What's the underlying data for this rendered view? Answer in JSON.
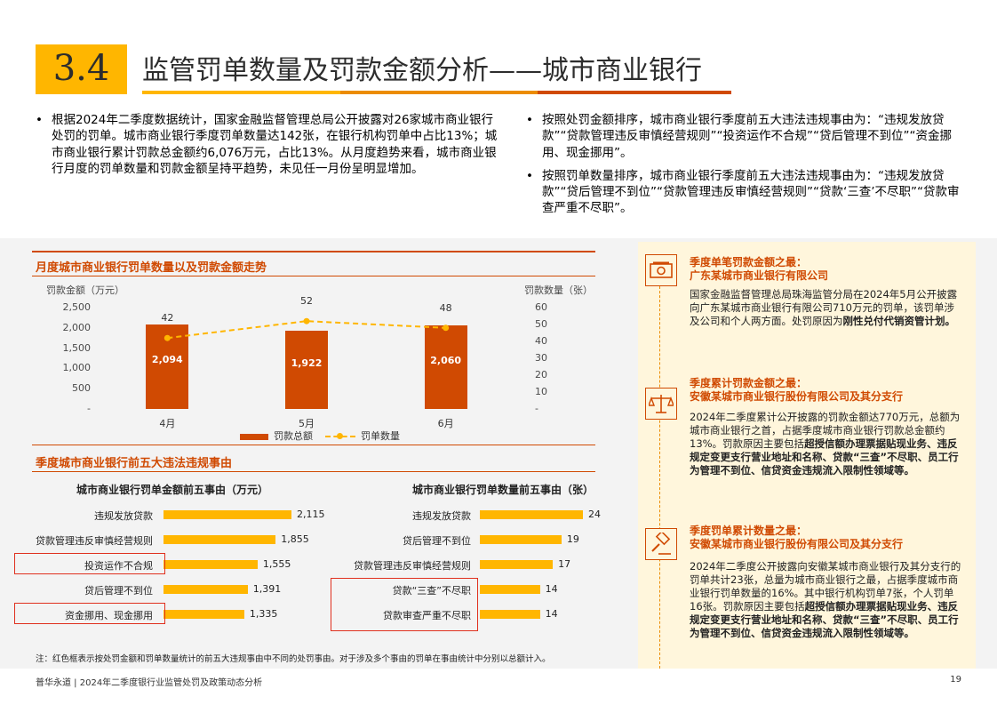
{
  "header": {
    "section_number": "3.4",
    "title": "监管罚单数量及罚款金额分析——城市商业银行"
  },
  "bullets_left": [
    "根据2024年二季度数据统计，国家金融监督管理总局公开披露对26家城市商业银行处罚的罚单。城市商业银行季度罚单数量达142张，在银行机构罚单中占比13%；城市商业银行累计罚款总金额约6,076万元，占比13%。从月度趋势来看，城市商业银行月度的罚单数量和罚款金额呈持平趋势，未见任一月份呈明显增加。"
  ],
  "bullets_right": [
    "按照处罚金额排序，城市商业银行季度前五大违法违规事由为：“违规发放贷款”“贷款管理违反审慎经营规则”“投资运作不合规”“贷后管理不到位”“资金挪用、现金挪用”。",
    "按照罚单数量排序，城市商业银行季度前五大违法违规事由为：“违规发放贷款”“贷后管理不到位”“贷款管理违反审慎经营规则”“贷款‘三查’不尽职”“贷款审查严重不尽职”。"
  ],
  "chart_data": [
    {
      "type": "bar",
      "title": "月度城市商业银行罚单数量以及罚款金额走势",
      "categories": [
        "4月",
        "5月",
        "6月"
      ],
      "series": [
        {
          "name": "罚款总额",
          "type": "bar",
          "axis": "left",
          "values": [
            2094,
            1922,
            2060
          ],
          "labels": [
            "2,094",
            "1,922",
            "2,060"
          ],
          "color": "#D04A02"
        },
        {
          "name": "罚单数量",
          "type": "line",
          "axis": "right",
          "values": [
            42,
            52,
            48
          ],
          "labels": [
            "42",
            "52",
            "48"
          ],
          "color": "#FFB600"
        }
      ],
      "ylabel": "罚款金额（万元）",
      "y2label": "罚款数量（张）",
      "ylim": [
        0,
        2500
      ],
      "y2lim": [
        0,
        60
      ],
      "yticks": [
        "2,500",
        "2,000",
        "1,500",
        "1,000",
        "500",
        "-"
      ],
      "y2ticks": [
        "60",
        "50",
        "40",
        "30",
        "20",
        "10",
        "-"
      ],
      "legend": "bottom"
    },
    {
      "type": "bar",
      "orientation": "horizontal",
      "title": "城市商业银行罚单金额前五事由（万元）",
      "categories": [
        "违规发放贷款",
        "贷款管理违反审慎经营规则",
        "投资运作不合规",
        "贷后管理不到位",
        "资金挪用、现金挪用"
      ],
      "values": [
        2115,
        1855,
        1555,
        1391,
        1335
      ],
      "labels": [
        "2,115",
        "1,855",
        "1,555",
        "1,391",
        "1,335"
      ],
      "highlighted": [
        "投资运作不合规",
        "资金挪用、现金挪用"
      ]
    },
    {
      "type": "bar",
      "orientation": "horizontal",
      "title": "城市商业银行罚单数量前五事由（张）",
      "categories": [
        "违规发放贷款",
        "贷后管理不到位",
        "贷款管理违反审慎经营规则",
        "贷款“三查”不尽职",
        "贷款审查严重不尽职"
      ],
      "values": [
        24,
        19,
        17,
        14,
        14
      ],
      "labels": [
        "24",
        "19",
        "17",
        "14",
        "14"
      ],
      "highlighted": [
        "贷款“三查”不尽职",
        "贷款审查严重不尽职"
      ]
    }
  ],
  "section_title_2": "季度城市商业银行前五大违法违规事由",
  "note": "注：红色框表示按处罚金额和罚单数量统计的前五大违规事由中不同的处罚事由。对于涉及多个事由的罚单在事由统计中分别以总额计入。",
  "highlights": [
    {
      "icon": "money-icon",
      "head1": "季度单笔罚款金额之最：",
      "head2": "广东某城市商业银行有限公司",
      "text": "国家金融监督管理总局珠海监管分局在2024年5月公开披露向广东某城市商业银行有限公司710万元的罚单，该罚单涉及公司和个人两方面。处罚原因为",
      "bold": "刚性兑付代销资管计划。"
    },
    {
      "icon": "scale-icon",
      "head1": "季度累计罚款金额之最：",
      "head2": "安徽某城市商业银行股份有限公司及其分支行",
      "text": "2024年二季度累计公开披露的罚款金额达770万元，总额为城市商业银行之首，占据季度城市商业银行罚款总金额约13%。罚款原因主要包括",
      "bold": "超授信额办理票据贴现业务、违反规定变更支行营业地址和名称、贷款“三查”不尽职、员工行为管理不到位、信贷资金违规流入限制性领域等。"
    },
    {
      "icon": "gavel-icon",
      "head1": "季度罚单累计数量之最：",
      "head2": "安徽某城市商业银行股份有限公司及其分支行",
      "text": "2024年二季度公开披露向安徽某城市商业银行及其分支行的罚单共计23张，总量为城市商业银行之最，占据季度城市商业银行罚单数量的16%。其中银行机构罚单7张，个人罚单16张。罚款原因主要包括",
      "bold": "超授信额办理票据贴现业务、违反规定变更支行营业地址和名称、贷款“三查”不尽职、员工行为管理不到位、信贷资金违规流入限制性领域等。"
    }
  ],
  "footer": {
    "text": "普华永道 | 2024年二季度银行业监管处罚及政策动态分析",
    "page": "19"
  },
  "colors": {
    "accent_yellow": "#FFB600",
    "accent_orange": "#EB8C00",
    "accent_red": "#D04A02",
    "highlight_box": "#E0301E"
  }
}
